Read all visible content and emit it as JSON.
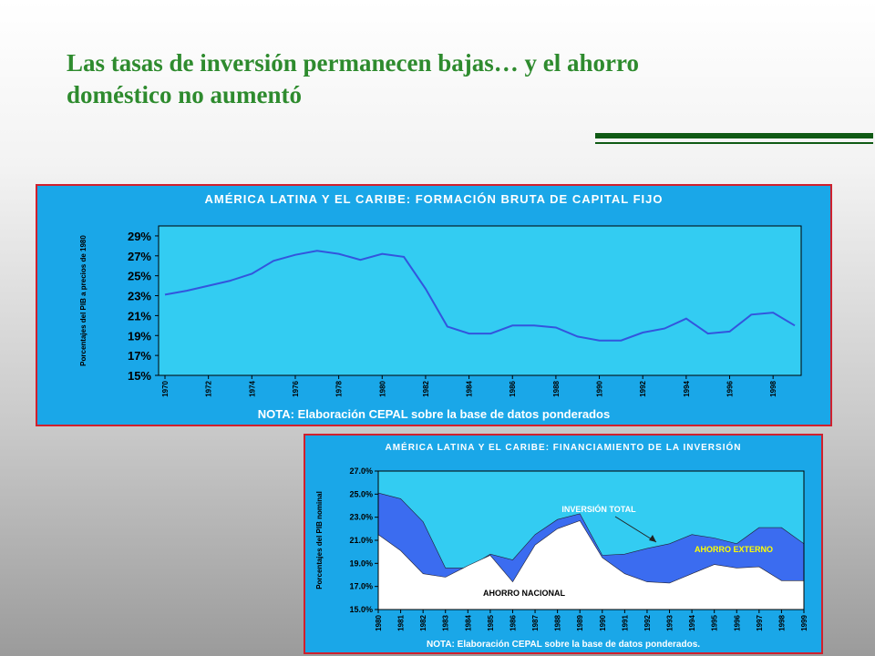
{
  "slide": {
    "title_line1": "Las tasas de inversión permanecen bajas… y el ahorro",
    "title_line2": "doméstico no aumentó"
  },
  "colors": {
    "title": "#2e8b2e",
    "rule": "#0f5a14",
    "panel_bg": "#1aa7e8",
    "panel_border": "#d0202d",
    "plot_bg": "#33ccf2",
    "line": "#3355dd",
    "externo_fill": "#3b6cf0",
    "nacional_fill": "#ffffff"
  },
  "chart_data": [
    {
      "type": "line",
      "title": "AMÉRICA LATINA Y EL CARIBE: FORMACIÓN BRUTA DE CAPITAL FIJO",
      "ylabel": "Porcentajes del PIB a precios de 1980",
      "note": "NOTA: Elaboración CEPAL sobre la base de datos ponderados",
      "ylim": [
        0.15,
        0.3
      ],
      "yticks": [
        0.15,
        0.17,
        0.19,
        0.21,
        0.23,
        0.25,
        0.27,
        0.29
      ],
      "ytick_labels": [
        "15%",
        "17%",
        "19%",
        "21%",
        "23%",
        "25%",
        "27%",
        "29%"
      ],
      "x": [
        1970,
        1971,
        1972,
        1973,
        1974,
        1975,
        1976,
        1977,
        1978,
        1979,
        1980,
        1981,
        1982,
        1983,
        1984,
        1985,
        1986,
        1987,
        1988,
        1989,
        1990,
        1991,
        1992,
        1993,
        1994,
        1995,
        1996,
        1997,
        1998,
        1999
      ],
      "xtick_labels": [
        "1970",
        "1972",
        "1974",
        "1976",
        "1978",
        "1980",
        "1982",
        "1984",
        "1986",
        "1988",
        "1990",
        "1992",
        "1994",
        "1996",
        "1998"
      ],
      "grid": false,
      "series": [
        {
          "values": [
            0.231,
            0.235,
            0.24,
            0.245,
            0.252,
            0.265,
            0.271,
            0.275,
            0.272,
            0.266,
            0.272,
            0.269,
            0.237,
            0.199,
            0.192,
            0.192,
            0.2,
            0.2,
            0.198,
            0.189,
            0.185,
            0.185,
            0.193,
            0.197,
            0.207,
            0.192,
            0.194,
            0.211,
            0.213,
            0.2
          ]
        }
      ]
    },
    {
      "type": "area",
      "title": "AMÉRICA LATINA Y EL CARIBE: FINANCIAMIENTO DE LA INVERSIÓN",
      "ylabel": "Porcentajes del PIB nominal",
      "note": "NOTA: Elaboración CEPAL sobre la base de datos ponderados.",
      "ylim": [
        0.15,
        0.27
      ],
      "yticks": [
        0.15,
        0.17,
        0.19,
        0.21,
        0.23,
        0.25,
        0.27
      ],
      "ytick_labels": [
        "15.0%",
        "17.0%",
        "19.0%",
        "21.0%",
        "23.0%",
        "25.0%",
        "27.0%"
      ],
      "categories": [
        "1980",
        "1981",
        "1982",
        "1983",
        "1984",
        "1985",
        "1986",
        "1987",
        "1988",
        "1989",
        "1990",
        "1991",
        "1992",
        "1993",
        "1994",
        "1995",
        "1996",
        "1997",
        "1998",
        "1999"
      ],
      "grid": false,
      "series": [
        {
          "name": "INVERSIÓN TOTAL",
          "values": [
            0.251,
            0.246,
            0.226,
            0.186,
            0.186,
            0.198,
            0.193,
            0.215,
            0.228,
            0.233,
            0.197,
            0.198,
            0.203,
            0.207,
            0.215,
            0.212,
            0.207,
            0.221,
            0.221,
            0.207
          ]
        },
        {
          "name": "AHORRO NACIONAL",
          "values": [
            0.215,
            0.201,
            0.181,
            0.178,
            0.188,
            0.197,
            0.174,
            0.206,
            0.22,
            0.227,
            0.195,
            0.181,
            0.174,
            0.173,
            0.181,
            0.189,
            0.186,
            0.187,
            0.175,
            0.175
          ]
        }
      ],
      "annotations": [
        "INVERSIÓN TOTAL",
        "AHORRO EXTERNO",
        "AHORRO NACIONAL"
      ]
    }
  ]
}
